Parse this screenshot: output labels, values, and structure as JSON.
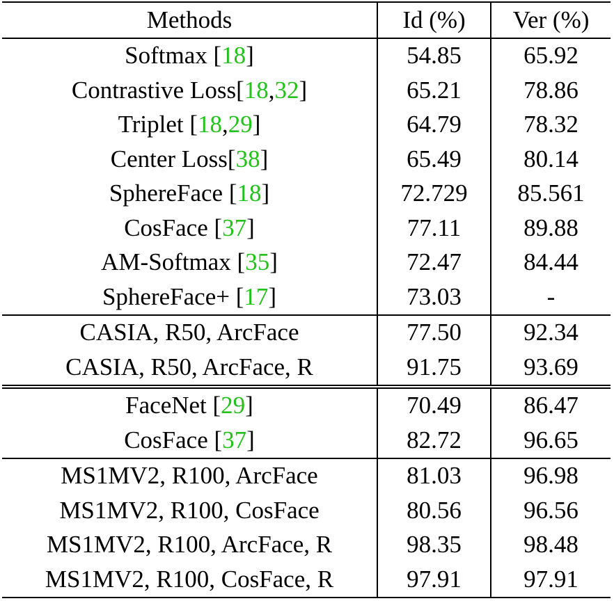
{
  "header": {
    "methods": "Methods",
    "id": "Id (%)",
    "ver": "Ver (%)"
  },
  "rows": [
    {
      "name": "Softmax [",
      "refs": [
        {
          "t": "18",
          "c": true
        }
      ],
      "close": "]",
      "id": "54.85",
      "ver": "65.92"
    },
    {
      "name": "Contrastive Loss[",
      "refs": [
        {
          "t": "18",
          "c": true
        },
        {
          "t": ", ",
          "c": false
        },
        {
          "t": "32",
          "c": true
        }
      ],
      "close": "]",
      "id": "65.21",
      "ver": "78.86"
    },
    {
      "name": "Triplet [",
      "refs": [
        {
          "t": "18",
          "c": true
        },
        {
          "t": ", ",
          "c": false
        },
        {
          "t": "29",
          "c": true
        }
      ],
      "close": "]",
      "id": "64.79",
      "ver": "78.32"
    },
    {
      "name": "Center Loss[",
      "refs": [
        {
          "t": "38",
          "c": true
        }
      ],
      "close": "]",
      "id": "65.49",
      "ver": "80.14"
    },
    {
      "name": "SphereFace [",
      "refs": [
        {
          "t": "18",
          "c": true
        }
      ],
      "close": "]",
      "id": "72.729",
      "ver": "85.561"
    },
    {
      "name": "CosFace [",
      "refs": [
        {
          "t": "37",
          "c": true
        }
      ],
      "close": "]",
      "id": "77.11",
      "ver": "89.88"
    },
    {
      "name": "AM-Softmax [",
      "refs": [
        {
          "t": "35",
          "c": true
        }
      ],
      "close": "]",
      "id": "72.47",
      "ver": "84.44"
    },
    {
      "name": "SphereFace+ [",
      "refs": [
        {
          "t": "17",
          "c": true
        }
      ],
      "close": "]",
      "id": "73.03",
      "ver": "-"
    },
    {
      "name": "CASIA, R50, ArcFace",
      "refs": [],
      "close": "",
      "id": "77.50",
      "ver": "92.34",
      "sep": "single"
    },
    {
      "name": "CASIA, R50, ArcFace, R",
      "refs": [],
      "close": "",
      "id": "91.75",
      "ver": "93.69"
    },
    {
      "name": "FaceNet [",
      "refs": [
        {
          "t": "29",
          "c": true
        }
      ],
      "close": "]",
      "id": "70.49",
      "ver": "86.47",
      "sep": "double"
    },
    {
      "name": "CosFace [",
      "refs": [
        {
          "t": "37",
          "c": true
        }
      ],
      "close": "]",
      "id": "82.72",
      "ver": "96.65"
    },
    {
      "name": "MS1MV2, R100, ArcFace",
      "refs": [],
      "close": "",
      "id": "81.03",
      "ver": "96.98",
      "sep": "single"
    },
    {
      "name": "MS1MV2, R100, CosFace",
      "refs": [],
      "close": "",
      "id": "80.56",
      "ver": "96.56"
    },
    {
      "name": "MS1MV2, R100, ArcFace, R",
      "refs": [],
      "close": "",
      "id": "98.35",
      "ver": "98.48"
    },
    {
      "name": "MS1MV2, R100, CosFace, R",
      "refs": [],
      "close": "",
      "id": "97.91",
      "ver": "97.91"
    }
  ],
  "colors": {
    "ref_link": "#22c21b",
    "text": "#000000"
  }
}
